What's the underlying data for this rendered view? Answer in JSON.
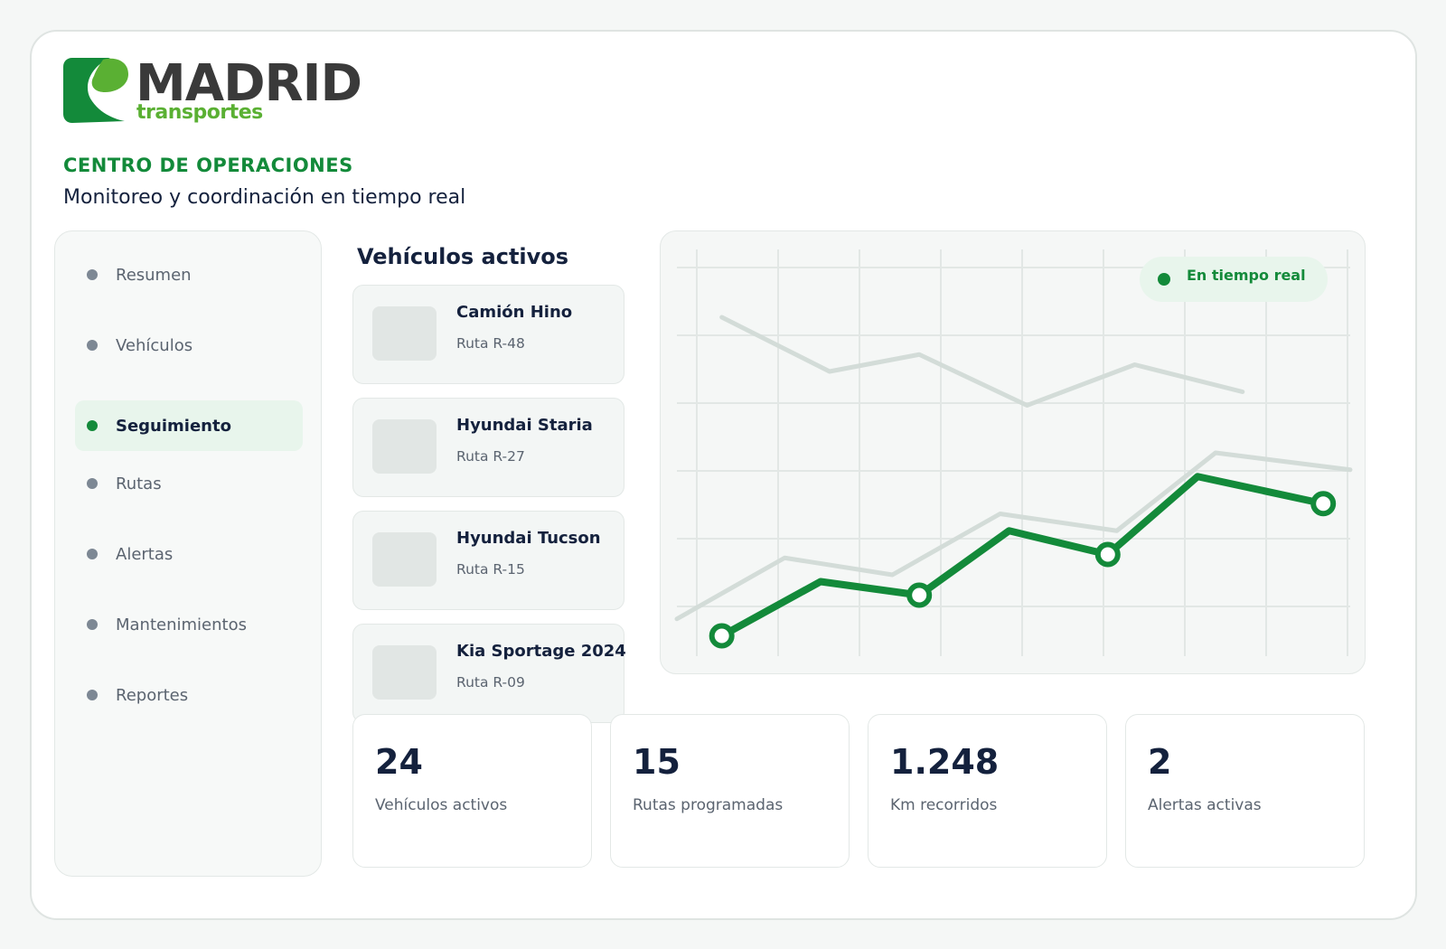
{
  "brand": {
    "name": "MADRID",
    "tagline": "transportes",
    "colors": {
      "primary_green": "#138a3a",
      "light_green": "#5ab033",
      "dark_text": "#14213d"
    }
  },
  "header": {
    "eyebrow": "CENTRO DE OPERACIONES",
    "subtitle": "Monitoreo y coordinación en tiempo real"
  },
  "sidebar": {
    "items": [
      {
        "label": "Resumen",
        "active": false
      },
      {
        "label": "Vehículos",
        "active": false
      },
      {
        "label": "Seguimiento",
        "active": true
      },
      {
        "label": "Rutas",
        "active": false
      },
      {
        "label": "Alertas",
        "active": false
      },
      {
        "label": "Mantenimientos",
        "active": false
      },
      {
        "label": "Reportes",
        "active": false
      }
    ]
  },
  "vehicles": {
    "title": "Vehículos activos",
    "items": [
      {
        "name": "Camión Hino",
        "route": "Ruta R-48"
      },
      {
        "name": "Hyundai Staria",
        "route": "Ruta R-27"
      },
      {
        "name": "Hyundai Tucson",
        "route": "Ruta R-15"
      },
      {
        "name": "Kia Sportage 2024",
        "route": "Ruta R-09"
      }
    ]
  },
  "live_badge": {
    "label": "En tiempo real",
    "icon": "live-dot-icon"
  },
  "chart_data": {
    "type": "line",
    "grid": true,
    "ylim": [
      0,
      6
    ],
    "series": [
      {
        "role": "background-upper",
        "x": [
          0.5,
          1.7,
          2.7,
          3.9,
          5.1,
          6.3
        ],
        "values": [
          5.0,
          4.2,
          4.45,
          3.7,
          4.3,
          3.9
        ]
      },
      {
        "role": "background-lower",
        "x": [
          0,
          1.2,
          2.4,
          3.6,
          4.9,
          6.0,
          7.5
        ],
        "values": [
          0.55,
          1.45,
          1.2,
          2.1,
          1.85,
          3.0,
          2.75
        ]
      },
      {
        "role": "highlight",
        "x": [
          0.5,
          1.6,
          2.7,
          3.7,
          4.8,
          5.8,
          7.2
        ],
        "values": [
          0.3,
          1.1,
          0.9,
          1.85,
          1.5,
          2.65,
          2.25
        ],
        "markers": [
          0,
          2,
          4,
          6
        ]
      }
    ]
  },
  "stats": [
    {
      "value": "24",
      "label": "Vehículos activos"
    },
    {
      "value": "15",
      "label": "Rutas programadas"
    },
    {
      "value": "1.248",
      "label": "Km recorridos"
    },
    {
      "value": "2",
      "label": "Alertas activas"
    }
  ]
}
